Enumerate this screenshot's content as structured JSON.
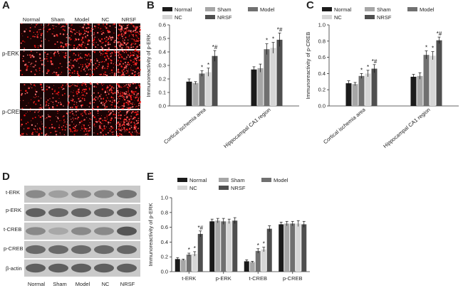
{
  "panels": {
    "A": "A",
    "B": "B",
    "C": "C",
    "D": "D",
    "E": "E"
  },
  "colors": {
    "Normal": "#1b1b1b",
    "Sham": "#a6a6a6",
    "Model": "#707070",
    "NC": "#d6d6d6",
    "NRSF": "#4f4f4f"
  },
  "micrographs": {
    "columns": [
      "Normal",
      "Sham",
      "Model",
      "NC",
      "NRSF"
    ],
    "rows": [
      "p-ERK",
      "p-CREB"
    ],
    "stain_density": [
      0.2,
      0.2,
      0.45,
      0.45,
      0.85
    ]
  },
  "western_blot": {
    "lanes": [
      "Normal",
      "Sham",
      "Model",
      "NC",
      "NRSF"
    ],
    "bands": [
      "t-ERK",
      "p-ERK",
      "t-CREB",
      "p-CREB",
      "β-actin"
    ]
  },
  "chart_data": [
    {
      "panel": "B",
      "type": "bar",
      "ylabel": "Immunoreactivity of p-ERK",
      "ylim": [
        0,
        0.6
      ],
      "yticks": [
        "0.0",
        "0.1",
        "0.2",
        "0.3",
        "0.4",
        "0.5",
        "0.6"
      ],
      "categories": [
        "Cortical ischemia area",
        "Hippocampal CA1 region"
      ],
      "legend": [
        "Normal",
        "Sham",
        "Model",
        "NC",
        "NRSF"
      ],
      "legend_placement": "top",
      "series": [
        {
          "name": "Normal",
          "values": [
            0.18,
            0.27
          ],
          "errors": [
            0.02,
            0.02
          ]
        },
        {
          "name": "Sham",
          "values": [
            0.17,
            0.28
          ],
          "errors": [
            0.01,
            0.03
          ]
        },
        {
          "name": "Model",
          "values": [
            0.24,
            0.42
          ],
          "errors": [
            0.02,
            0.04
          ]
        },
        {
          "name": "NC",
          "values": [
            0.25,
            0.43
          ],
          "errors": [
            0.03,
            0.04
          ]
        },
        {
          "name": "NRSF",
          "values": [
            0.37,
            0.49
          ],
          "errors": [
            0.04,
            0.05
          ]
        }
      ],
      "annotations": [
        [
          "",
          "",
          "*",
          "*",
          "*#"
        ],
        [
          "",
          "",
          "*",
          "*",
          "*#"
        ]
      ]
    },
    {
      "panel": "C",
      "type": "bar",
      "ylabel": "Immunoreactivity of p-CREB",
      "ylim": [
        0,
        1.0
      ],
      "yticks": [
        "0.0",
        "0.2",
        "0.4",
        "0.6",
        "0.8",
        "1.0"
      ],
      "categories": [
        "Cortical ischemia area",
        "Hippocampal CA1 region"
      ],
      "legend": [
        "Normal",
        "Sham",
        "Model",
        "NC",
        "NRSF"
      ],
      "legend_placement": "top",
      "series": [
        {
          "name": "Normal",
          "values": [
            0.28,
            0.36
          ],
          "errors": [
            0.03,
            0.03
          ]
        },
        {
          "name": "Sham",
          "values": [
            0.27,
            0.37
          ],
          "errors": [
            0.02,
            0.04
          ]
        },
        {
          "name": "Model",
          "values": [
            0.37,
            0.63
          ],
          "errors": [
            0.03,
            0.05
          ]
        },
        {
          "name": "NC",
          "values": [
            0.4,
            0.62
          ],
          "errors": [
            0.04,
            0.05
          ]
        },
        {
          "name": "NRSF",
          "values": [
            0.46,
            0.81
          ],
          "errors": [
            0.05,
            0.04
          ]
        }
      ],
      "annotations": [
        [
          "",
          "",
          "*",
          "*",
          "*#"
        ],
        [
          "",
          "",
          "*",
          "*",
          "*#"
        ]
      ]
    },
    {
      "panel": "E",
      "type": "bar",
      "ylabel": "Immunoreactivity of p-ERK",
      "ylim": [
        0,
        1.0
      ],
      "yticks": [
        "0.0",
        "0.2",
        "0.4",
        "0.6",
        "0.8",
        "1.0"
      ],
      "categories": [
        "t-ERK",
        "p-ERK",
        "t-CREB",
        "p-CREB"
      ],
      "legend": [
        "Normal",
        "Sham",
        "Model",
        "NC",
        "NRSF"
      ],
      "legend_placement": "top",
      "series": [
        {
          "name": "Normal",
          "values": [
            0.17,
            0.68,
            0.14,
            0.64
          ],
          "errors": [
            0.02,
            0.03,
            0.02,
            0.03
          ]
        },
        {
          "name": "Sham",
          "values": [
            0.16,
            0.69,
            0.13,
            0.65
          ],
          "errors": [
            0.01,
            0.03,
            0.01,
            0.03
          ]
        },
        {
          "name": "Model",
          "values": [
            0.23,
            0.68,
            0.28,
            0.65
          ],
          "errors": [
            0.02,
            0.04,
            0.03,
            0.03
          ]
        },
        {
          "name": "NC",
          "values": [
            0.24,
            0.68,
            0.3,
            0.65
          ],
          "errors": [
            0.03,
            0.03,
            0.03,
            0.04
          ]
        },
        {
          "name": "NRSF",
          "values": [
            0.51,
            0.69,
            0.58,
            0.64
          ],
          "errors": [
            0.04,
            0.04,
            0.04,
            0.04
          ]
        }
      ],
      "annotations": [
        [
          "",
          "",
          "*",
          "*",
          "*#"
        ],
        [
          "",
          "",
          "",
          "",
          ""
        ],
        [
          "",
          "",
          "*",
          "*",
          ""
        ],
        [
          "",
          "",
          "",
          "",
          ""
        ]
      ]
    }
  ]
}
